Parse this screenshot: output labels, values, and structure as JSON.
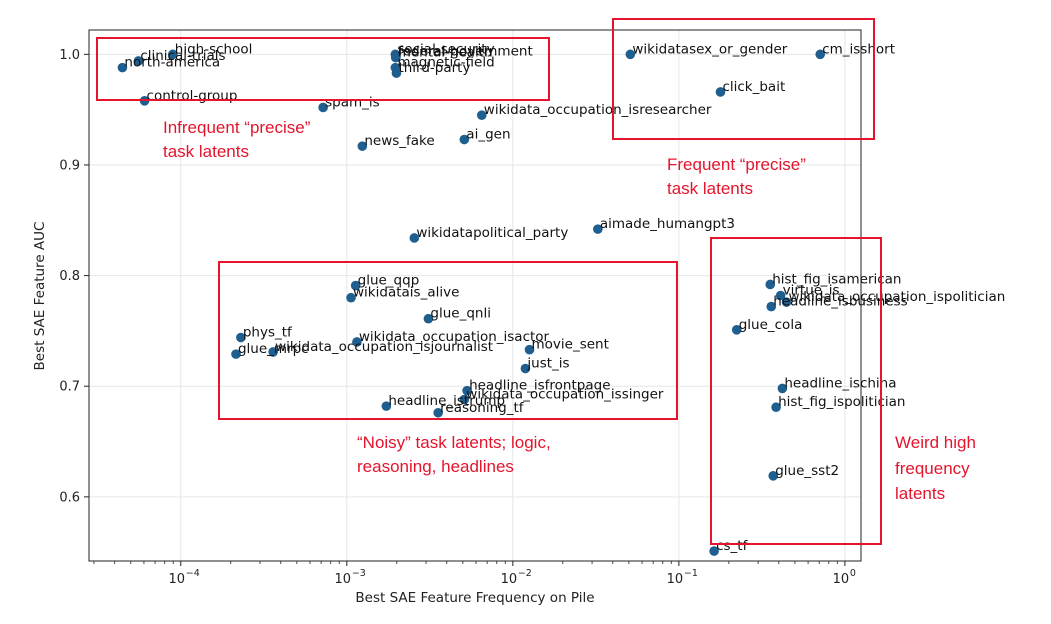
{
  "colors": {
    "point": "#1f5f8f",
    "box": "#e4142c",
    "grid": "#e6e6e6",
    "axis": "#222222"
  },
  "chart_data": {
    "type": "scatter",
    "xscale": "log",
    "xlim": [
      2.8e-05,
      1.25
    ],
    "ylim": [
      0.542,
      1.022
    ],
    "xlabel": "Best SAE Feature Frequency on Pile",
    "ylabel": "Best SAE Feature AUC",
    "x_ticks": [
      {
        "value": 0.0001,
        "label": "10",
        "exp": "−4"
      },
      {
        "value": 0.001,
        "label": "10",
        "exp": "−3"
      },
      {
        "value": 0.01,
        "label": "10",
        "exp": "−2"
      },
      {
        "value": 0.1,
        "label": "10",
        "exp": "−1"
      },
      {
        "value": 1,
        "label": "10",
        "exp": "0"
      }
    ],
    "y_ticks": [
      {
        "value": 0.6,
        "label": "0.6"
      },
      {
        "value": 0.7,
        "label": "0.7"
      },
      {
        "value": 0.8,
        "label": "0.8"
      },
      {
        "value": 0.9,
        "label": "0.9"
      },
      {
        "value": 1.0,
        "label": "1.0"
      }
    ],
    "grid": true,
    "points": [
      {
        "label": "high-school",
        "x": 8.95e-05,
        "y": 1.0
      },
      {
        "label": "clinical-trials",
        "x": 5.55e-05,
        "y": 0.994
      },
      {
        "label": "north-america",
        "x": 4.45e-05,
        "y": 0.988
      },
      {
        "label": "control-group",
        "x": 6.05e-05,
        "y": 0.958
      },
      {
        "label": "social-security",
        "x": 0.00196,
        "y": 1.0
      },
      {
        "label": "federal-government",
        "x": 0.00198,
        "y": 0.998
      },
      {
        "label": "mental-health",
        "x": 0.00197,
        "y": 0.997
      },
      {
        "label": "magnetic-field",
        "x": 0.00196,
        "y": 0.988
      },
      {
        "label": "third-party",
        "x": 0.00199,
        "y": 0.983
      },
      {
        "label": "spam_is",
        "x": 0.00072,
        "y": 0.952
      },
      {
        "label": "news_fake",
        "x": 0.00124,
        "y": 0.917
      },
      {
        "label": "ai_gen",
        "x": 0.0051,
        "y": 0.923
      },
      {
        "label": "wikidata_occupation_isresearcher",
        "x": 0.0065,
        "y": 0.945
      },
      {
        "label": "wikidatasex_or_gender",
        "x": 0.051,
        "y": 1.0
      },
      {
        "label": "cm_isshort",
        "x": 0.71,
        "y": 1.0
      },
      {
        "label": "click_bait",
        "x": 0.178,
        "y": 0.966
      },
      {
        "label": "wikidatapolitical_party",
        "x": 0.00255,
        "y": 0.834
      },
      {
        "label": "aimade_humangpt3",
        "x": 0.0325,
        "y": 0.842
      },
      {
        "label": "glue_qqp",
        "x": 0.00113,
        "y": 0.791
      },
      {
        "label": "wikidatais_alive",
        "x": 0.00106,
        "y": 0.78
      },
      {
        "label": "glue_qnli",
        "x": 0.0031,
        "y": 0.761
      },
      {
        "label": "phys_tf",
        "x": 0.00023,
        "y": 0.744
      },
      {
        "label": "glue_mrpc",
        "x": 0.000215,
        "y": 0.729
      },
      {
        "label": "wikidata_occupation_isjournalist",
        "x": 0.00036,
        "y": 0.731
      },
      {
        "label": "wikidata_occupation_isactor",
        "x": 0.00115,
        "y": 0.74
      },
      {
        "label": "movie_sent",
        "x": 0.0126,
        "y": 0.733
      },
      {
        "label": "just_is",
        "x": 0.0119,
        "y": 0.716
      },
      {
        "label": "headline_isfrontpage",
        "x": 0.0053,
        "y": 0.696
      },
      {
        "label": "headline_istrump",
        "x": 0.00173,
        "y": 0.682
      },
      {
        "label": "wikidata_occupation_issinger",
        "x": 0.0051,
        "y": 0.688
      },
      {
        "label": "reasoning_tf",
        "x": 0.00355,
        "y": 0.676
      },
      {
        "label": "hist_fig_isamerican",
        "x": 0.355,
        "y": 0.792
      },
      {
        "label": "virtue_is",
        "x": 0.41,
        "y": 0.782
      },
      {
        "label": "headline_isbusiness",
        "x": 0.36,
        "y": 0.772
      },
      {
        "label": "wikidata_occupation_ispolitician",
        "x": 0.445,
        "y": 0.776
      },
      {
        "label": "glue_cola",
        "x": 0.223,
        "y": 0.751
      },
      {
        "label": "headline_ischina",
        "x": 0.42,
        "y": 0.698
      },
      {
        "label": "hist_fig_ispolitician",
        "x": 0.385,
        "y": 0.681
      },
      {
        "label": "glue_sst2",
        "x": 0.37,
        "y": 0.619
      },
      {
        "label": "cs_tf",
        "x": 0.163,
        "y": 0.551
      }
    ],
    "annotations": [
      {
        "lines": [
          "Infrequent “precise”",
          "task latents"
        ]
      },
      {
        "lines": [
          "Frequent “precise”",
          "task latents"
        ]
      },
      {
        "lines": [
          "“Noisy” task latents; logic,",
          "reasoning, headlines"
        ]
      },
      {
        "lines": [
          "Weird high",
          "frequency",
          "latents"
        ]
      }
    ]
  }
}
